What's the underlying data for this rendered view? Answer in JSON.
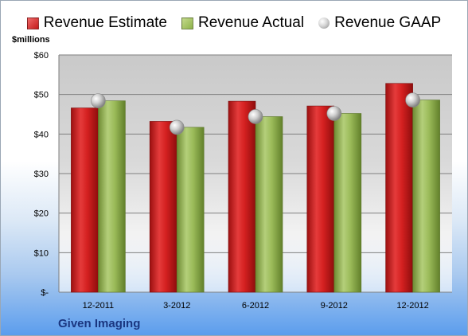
{
  "legend": {
    "estimate": "Revenue Estimate",
    "actual": "Revenue Actual",
    "gaap": "Revenue GAAP"
  },
  "unit_label": "$millions",
  "company": "Given Imaging",
  "colors": {
    "estimate": "#d42020",
    "actual": "#9bbb59",
    "gaap": "#c8c8c8",
    "company_text": "#1a3680"
  },
  "chart_data": {
    "type": "bar",
    "categories": [
      "12-2011",
      "3-2012",
      "6-2012",
      "9-2012",
      "12-2012"
    ],
    "series": [
      {
        "name": "Revenue Estimate",
        "values": [
          46.6,
          43.2,
          48.3,
          47.1,
          52.8
        ]
      },
      {
        "name": "Revenue Actual",
        "values": [
          48.4,
          41.7,
          44.4,
          45.2,
          48.6
        ]
      },
      {
        "name": "Revenue GAAP",
        "values": [
          48.4,
          41.7,
          44.4,
          45.2,
          48.6
        ]
      }
    ],
    "ylabel": "$millions",
    "ylim": [
      0,
      60
    ],
    "yticks": [
      {
        "value": 0,
        "label": "$-"
      },
      {
        "value": 10,
        "label": "$10"
      },
      {
        "value": 20,
        "label": "$20"
      },
      {
        "value": 30,
        "label": "$30"
      },
      {
        "value": 40,
        "label": "$40"
      },
      {
        "value": 50,
        "label": "$50"
      },
      {
        "value": 60,
        "label": "$60"
      }
    ],
    "grid": true,
    "legend_position": "top"
  }
}
